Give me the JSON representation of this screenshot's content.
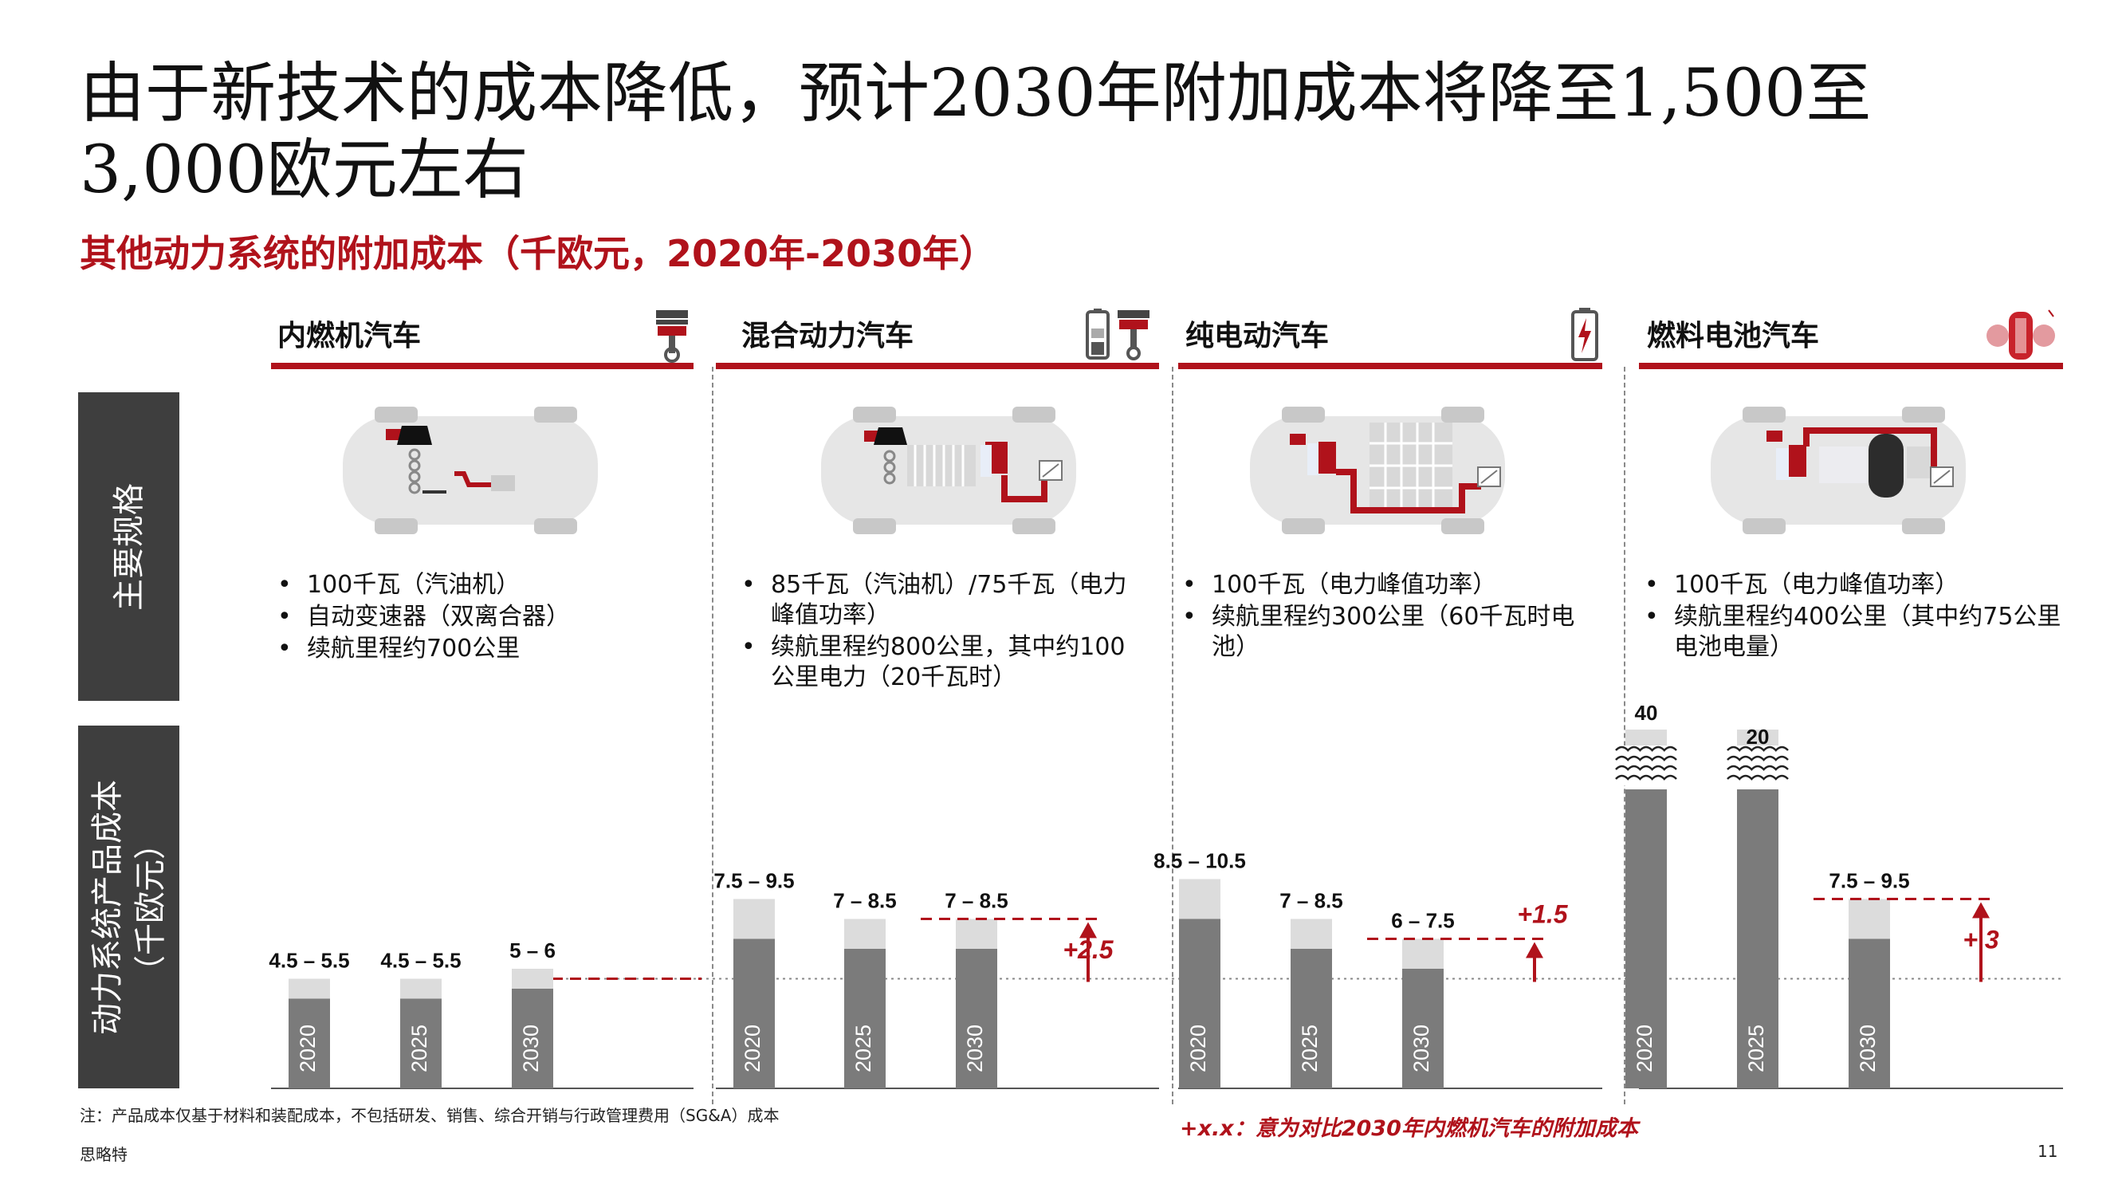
{
  "title": "由于新技术的成本降低，预计2030年附加成本将降至1,500至3,000欧元左右",
  "subtitle": "其他动力系统的附加成本（千欧元，2020年-2030年）",
  "row_labels": {
    "specs": "主要规格",
    "cost_line1": "动力系统产品成本",
    "cost_line2": "（千欧元）"
  },
  "columns": [
    {
      "name": "内燃机汽车",
      "icon": "piston-icon",
      "specs": [
        "100千瓦（汽油机）",
        "自动变速器（双离合器）",
        "续航里程约700公里"
      ]
    },
    {
      "name": "混合动力汽车",
      "icon": "battery-and-piston-icon",
      "specs": [
        "85千瓦（汽油机）/75千瓦（电力峰值功率）",
        "续航里程约800公里，其中约100公里电力（20千瓦时）"
      ]
    },
    {
      "name": "纯电动汽车",
      "icon": "battery-charge-icon",
      "specs": [
        "100千瓦（电力峰值功率）",
        "续航里程约300公里（60千瓦时电池）"
      ]
    },
    {
      "name": "燃料电池汽车",
      "icon": "hydrogen-tank-icon",
      "specs": [
        "100千瓦（电力峰值功率）",
        "续航里程约400公里（其中约75公里电池电量）"
      ]
    }
  ],
  "chart_data": {
    "type": "bar",
    "ylabel": "动力系统产品成本（千欧元）",
    "groups": [
      {
        "name": "内燃机汽车",
        "bars": [
          {
            "year": "2020",
            "low": 4.5,
            "high": 5.5,
            "label": "4.5 – 5.5"
          },
          {
            "year": "2025",
            "low": 4.5,
            "high": 5.5,
            "label": "4.5 – 5.5"
          },
          {
            "year": "2030",
            "low": 5,
            "high": 6,
            "label": "5 – 6"
          }
        ],
        "delta": null
      },
      {
        "name": "混合动力汽车",
        "bars": [
          {
            "year": "2020",
            "low": 7.5,
            "high": 9.5,
            "label": "7.5 – 9.5"
          },
          {
            "year": "2025",
            "low": 7,
            "high": 8.5,
            "label": "7 – 8.5"
          },
          {
            "year": "2030",
            "low": 7,
            "high": 8.5,
            "label": "7 – 8.5"
          }
        ],
        "delta": "+2.5"
      },
      {
        "name": "纯电动汽车",
        "bars": [
          {
            "year": "2020",
            "low": 8.5,
            "high": 10.5,
            "label": "8.5 – 10.5"
          },
          {
            "year": "2025",
            "low": 7,
            "high": 8.5,
            "label": "7 – 8.5"
          },
          {
            "year": "2030",
            "low": 6,
            "high": 7.5,
            "label": "6 – 7.5"
          }
        ],
        "delta": "+1.5"
      },
      {
        "name": "燃料电池汽车",
        "bars": [
          {
            "year": "2020",
            "low": 40,
            "high": 40,
            "label": "40",
            "axis_break": true
          },
          {
            "year": "2025",
            "low": 20,
            "high": 20,
            "label": "20",
            "axis_break": true
          },
          {
            "year": "2030",
            "low": 7.5,
            "high": 9.5,
            "label": "7.5 – 9.5"
          }
        ],
        "delta": "+ 3"
      }
    ],
    "reference_line": 5.5,
    "colors": {
      "solid": "#7b7b7b",
      "range": "#dcdcdc",
      "accent": "#b0121b"
    }
  },
  "footnote": "注：产品成本仅基于材料和装配成本，不包括研发、销售、综合开销与行政管理费用（SG&A）成本",
  "legend_note": "+x.x：意为对比2030年内燃机汽车的附加成本",
  "source": "思略特",
  "page_number": "11"
}
